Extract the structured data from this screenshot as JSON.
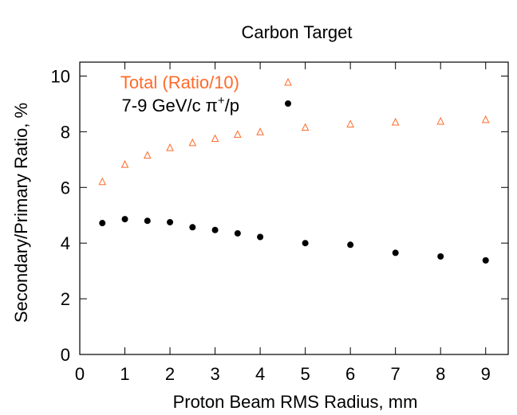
{
  "chart_data": {
    "type": "scatter",
    "title": "Carbon Target",
    "xlabel": "Proton Beam RMS Radius, mm",
    "ylabel": "Secondary/Primary Ratio, %",
    "xlim": [
      0,
      9.5
    ],
    "ylim": [
      0,
      10.5
    ],
    "xticks": [
      0,
      1,
      2,
      3,
      4,
      5,
      6,
      7,
      8,
      9
    ],
    "yticks": [
      0,
      2,
      4,
      6,
      8,
      10
    ],
    "grid": false,
    "legend_position": "top-left",
    "series": [
      {
        "name": "Total (Ratio/10)",
        "marker": "triangle-open",
        "color": "#ff6a2a",
        "x": [
          0.5,
          1.0,
          1.5,
          2.0,
          2.5,
          3.0,
          3.5,
          4.0,
          5.0,
          6.0,
          7.0,
          8.0,
          9.0
        ],
        "y": [
          6.2,
          6.82,
          7.15,
          7.42,
          7.6,
          7.75,
          7.9,
          7.99,
          8.15,
          8.27,
          8.34,
          8.37,
          8.43
        ]
      },
      {
        "name_main": "7-9 GeV/c π",
        "name_sup": "+",
        "name_tail": "/p",
        "marker": "circle-filled",
        "color": "#000000",
        "x": [
          0.5,
          1.0,
          1.5,
          2.0,
          2.5,
          3.0,
          3.5,
          4.0,
          5.0,
          6.0,
          7.0,
          8.0,
          9.0
        ],
        "y": [
          4.72,
          4.86,
          4.8,
          4.75,
          4.57,
          4.47,
          4.35,
          4.22,
          4.0,
          3.94,
          3.65,
          3.52,
          3.38
        ]
      }
    ]
  }
}
